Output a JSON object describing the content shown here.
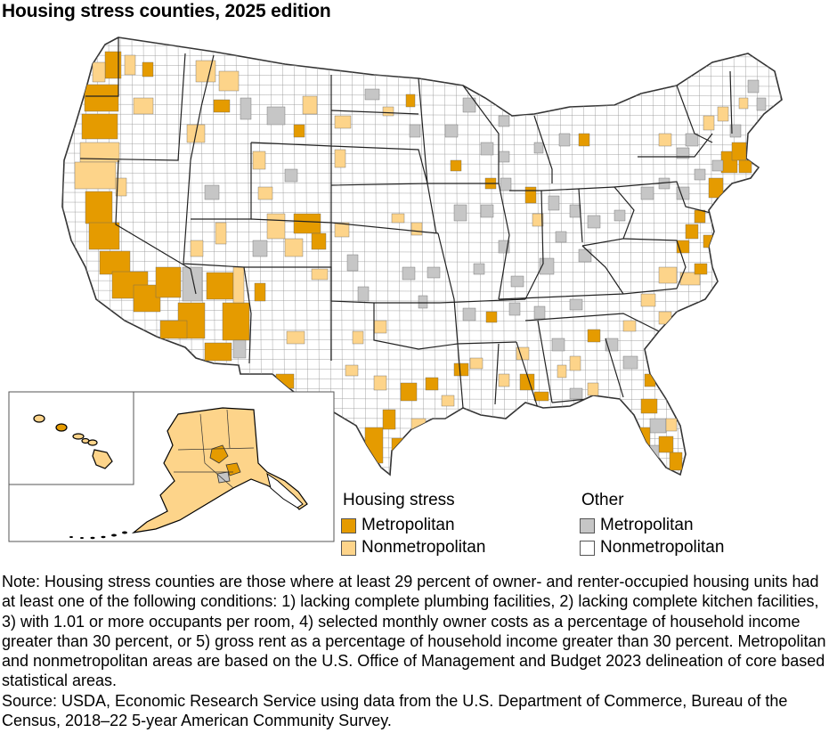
{
  "title": "Housing stress counties, 2025 edition",
  "colors": {
    "stress_metro": "#e59b00",
    "stress_nonmetro": "#fdd48a",
    "other_metro": "#c6c6c6",
    "other_nonmetro": "#ffffff",
    "border": "#555555"
  },
  "legend": {
    "housing_stress": {
      "heading": "Housing stress",
      "metro": "Metropolitan",
      "nonmetro": "Nonmetropolitan"
    },
    "other": {
      "heading": "Other",
      "metro": "Metropolitan",
      "nonmetro": "Nonmetropolitan"
    }
  },
  "note": "Note: Housing stress counties are those where at least 29 percent of owner- and renter-occupied housing units had at least one of the following conditions: 1) lacking complete plumbing facilities, 2) lacking complete kitchen facilities, 3) with 1.01 or more occupants per room, 4) selected monthly owner costs as a percentage of household income greater than 30 percent, or 5) gross rent as a percentage of household income greater than 30 percent. Metropolitan and nonmetropolitan areas are based on the U.S. Office of Management and Budget 2023 delineation of core based statistical areas.",
  "source": "Source: USDA, Economic Research Service using data from the U.S. Department of Commerce, Bureau of the Census, 2018–22 5-year American Community Survey."
}
